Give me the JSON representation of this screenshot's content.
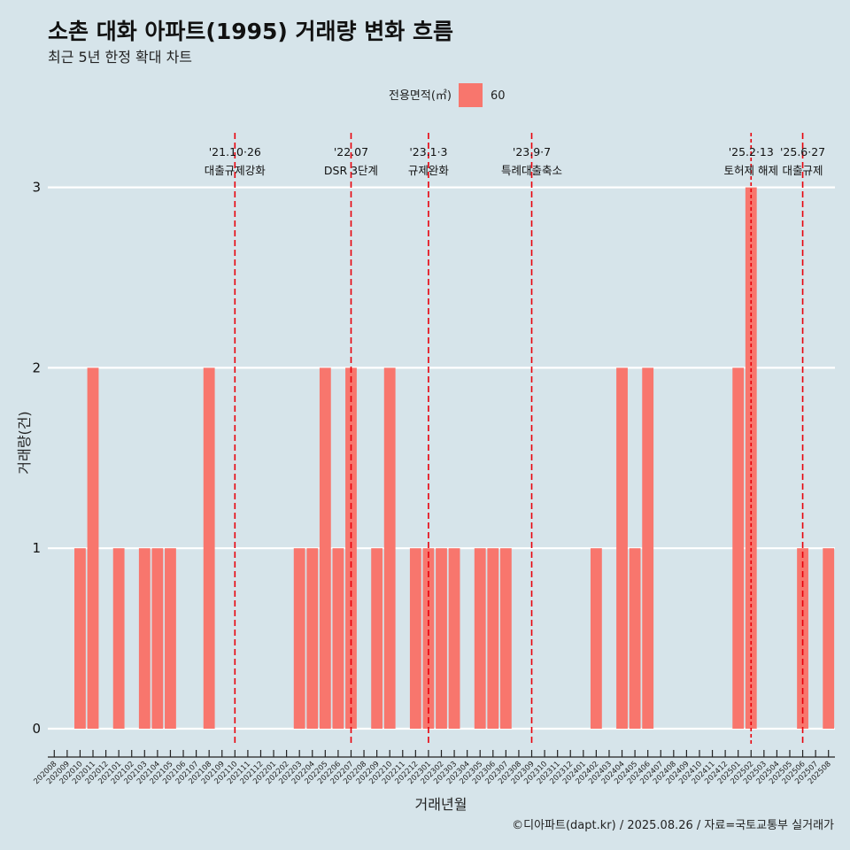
{
  "header": {
    "title": "소촌 대화 아파트(1995) 거래량 변화 흐름",
    "subtitle": "최근 5년 한정 확대 차트"
  },
  "legend": {
    "title": "전용면적(㎡)",
    "items": [
      {
        "label": "60",
        "color": "#f8766d"
      }
    ]
  },
  "caption": "©디아파트(dapt.kr) / 2025.08.26 / 자료=국토교통부 실거래가",
  "colors": {
    "background": "#d6e4ea",
    "bar": "#f8766d",
    "grid": "#ffffff",
    "event_line": "#e8000b"
  },
  "chart_data": {
    "type": "bar",
    "xlabel": "거래년월",
    "ylabel": "거래량(건)",
    "ylim": [
      0,
      3
    ],
    "yticks": [
      0,
      1,
      2,
      3
    ],
    "grid": true,
    "legend_position": "top",
    "categories": [
      "202008",
      "202009",
      "202010",
      "202011",
      "202012",
      "202101",
      "202102",
      "202103",
      "202104",
      "202105",
      "202106",
      "202107",
      "202108",
      "202109",
      "202110",
      "202111",
      "202112",
      "202201",
      "202202",
      "202203",
      "202204",
      "202205",
      "202206",
      "202207",
      "202208",
      "202209",
      "202210",
      "202211",
      "202212",
      "202301",
      "202302",
      "202303",
      "202304",
      "202305",
      "202306",
      "202307",
      "202308",
      "202309",
      "202310",
      "202311",
      "202312",
      "202401",
      "202402",
      "202403",
      "202404",
      "202405",
      "202406",
      "202407",
      "202408",
      "202409",
      "202410",
      "202411",
      "202412",
      "202501",
      "202502",
      "202503",
      "202504",
      "202505",
      "202506",
      "202507",
      "202508"
    ],
    "series": [
      {
        "name": "60",
        "values": [
          0,
          0,
          1,
          2,
          0,
          1,
          0,
          1,
          1,
          1,
          0,
          0,
          2,
          0,
          0,
          0,
          0,
          0,
          0,
          1,
          1,
          2,
          1,
          2,
          0,
          1,
          2,
          0,
          1,
          1,
          1,
          1,
          0,
          1,
          1,
          1,
          0,
          0,
          0,
          0,
          0,
          0,
          1,
          0,
          2,
          1,
          2,
          0,
          0,
          0,
          0,
          0,
          0,
          2,
          3,
          0,
          0,
          0,
          1,
          0,
          1
        ]
      }
    ],
    "events": [
      {
        "date": "202110",
        "offset": 0.0,
        "dashed_style": "long",
        "label_top": "'21.10·26",
        "label_bottom": "대출규제강화"
      },
      {
        "date": "202207",
        "offset": 0.0,
        "dashed_style": "long",
        "label_top": "'22.07",
        "label_bottom": "DSR 3단계"
      },
      {
        "date": "202301",
        "offset": 0.0,
        "dashed_style": "long",
        "label_top": "'23.1·3",
        "label_bottom": "규제완화"
      },
      {
        "date": "202309",
        "offset": 0.0,
        "dashed_style": "long",
        "label_top": "'23.9·7",
        "label_bottom": "특례대출축소"
      },
      {
        "date": "202502",
        "offset": 0.0,
        "dashed_style": "short",
        "label_top": "'25.2·13",
        "label_bottom": "토허제 해제"
      },
      {
        "date": "202506",
        "offset": 0.0,
        "dashed_style": "long",
        "label_top": "'25.6·27",
        "label_bottom": "대출규제"
      }
    ]
  }
}
